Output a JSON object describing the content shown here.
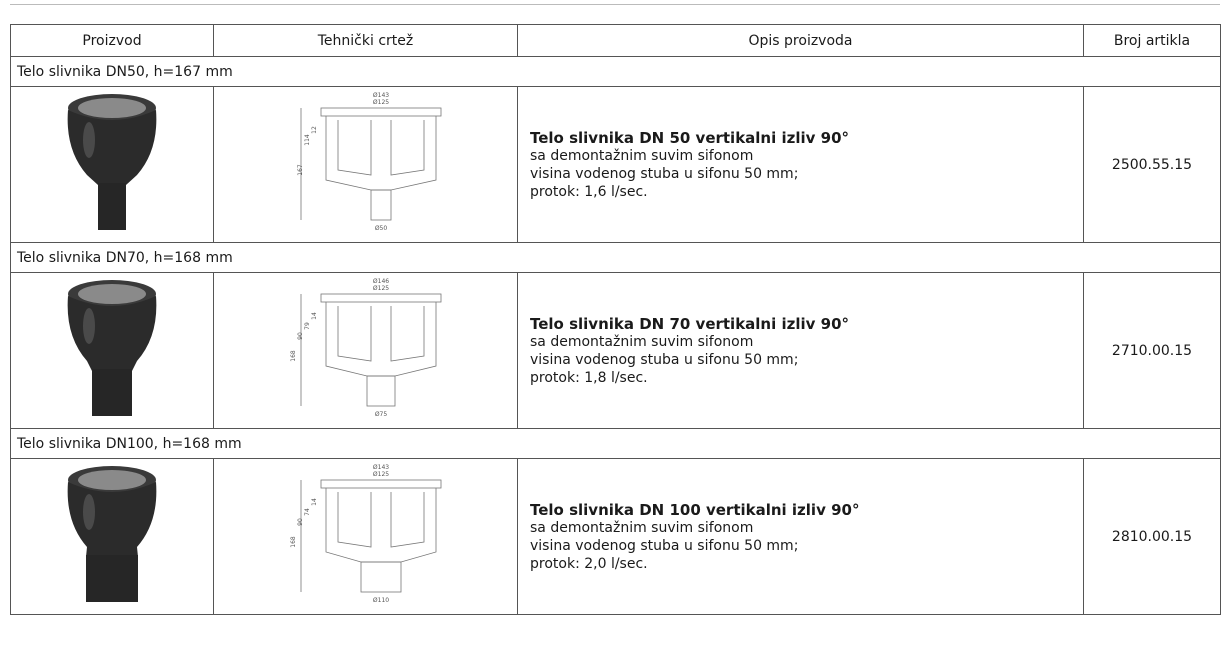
{
  "table": {
    "header": [
      "Proizvod",
      "Tehnički crtež",
      "Opis proizvoda",
      "Broj artikla"
    ],
    "groups": [
      {
        "section": "Telo slivnika DN50, h=167 mm",
        "drawing_dims": [
          "Ø143",
          "Ø125",
          "12",
          "114",
          "167",
          "Ø50"
        ],
        "description": {
          "title": "Telo slivnika DN 50 vertikalni izliv 90°",
          "lines": [
            "sa demontažnim suvim sifonom",
            "visina vodenog stuba u sifonu 50 mm;",
            "protok: 1,6 l/sec."
          ]
        },
        "article": "2500.55.15"
      },
      {
        "section": "Telo slivnika DN70, h=168 mm",
        "drawing_dims": [
          "Ø146",
          "Ø125",
          "14",
          "79",
          "90",
          "168",
          "Ø75"
        ],
        "description": {
          "title": "Telo slivnika DN 70 vertikalni izliv 90°",
          "lines": [
            "sa demontažnim suvim sifonom",
            "visina vodenog stuba u sifonu 50 mm;",
            "protok: 1,8 l/sec."
          ]
        },
        "article": "2710.00.15"
      },
      {
        "section": "Telo slivnika DN100, h=168 mm",
        "drawing_dims": [
          "Ø143",
          "Ø125",
          "14",
          "74",
          "90",
          "168",
          "Ø110"
        ],
        "description": {
          "title": "Telo slivnika DN 100 vertikalni izliv 90°",
          "lines": [
            "sa demontažnim suvim sifonom",
            "visina vodenog stuba u sifonu 50 mm;",
            "protok: 2,0 l/sec."
          ]
        },
        "article": "2810.00.15"
      }
    ]
  }
}
